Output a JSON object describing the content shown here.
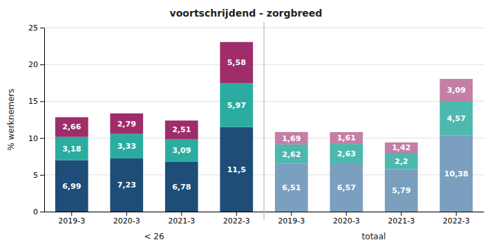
{
  "chart_data": [
    {
      "type": "bar",
      "title": "voortschrijdend - zorgbreed",
      "xlabel": "< 26",
      "ylabel": "% werknemers",
      "categories": [
        "2019-3",
        "2020-3",
        "2021-3",
        "2022-3"
      ],
      "series": [
        {
          "color": "#1e4d78",
          "values": [
            6.99,
            7.23,
            6.78,
            11.5
          ],
          "value_labels": [
            "6,99",
            "7,23",
            "6,78",
            "11,5"
          ]
        },
        {
          "color": "#2aada0",
          "values": [
            3.18,
            3.33,
            3.09,
            5.97
          ],
          "value_labels": [
            "3,18",
            "3,33",
            "3,09",
            "5,97"
          ]
        },
        {
          "color": "#9e2d6a",
          "values": [
            2.66,
            2.79,
            2.51,
            5.58
          ],
          "value_labels": [
            "2,66",
            "2,79",
            "2,51",
            "5,58"
          ]
        }
      ],
      "stacked": true,
      "data_labels": true,
      "grid": true,
      "ylim": [
        0,
        25
      ],
      "yticks": [
        0,
        5,
        10,
        15,
        20,
        25
      ]
    },
    {
      "type": "bar",
      "xlabel": "totaal",
      "categories": [
        "2019-3",
        "2020-3",
        "2021-3",
        "2022-3"
      ],
      "series": [
        {
          "color": "#7b9fbe",
          "values": [
            6.51,
            6.57,
            5.79,
            10.38
          ],
          "value_labels": [
            "6,51",
            "6,57",
            "5,79",
            "10,38"
          ]
        },
        {
          "color": "#4db8ae",
          "values": [
            2.62,
            2.63,
            2.2,
            4.57
          ],
          "value_labels": [
            "2,62",
            "2,63",
            "2,2",
            "4,57"
          ]
        },
        {
          "color": "#c47fa5",
          "values": [
            1.69,
            1.61,
            1.42,
            3.09
          ],
          "value_labels": [
            "1,69",
            "1,61",
            "1,42",
            "3,09"
          ]
        }
      ],
      "stacked": true,
      "data_labels": true,
      "grid": true,
      "tick_labels": "x",
      "ylim": [
        0,
        25
      ],
      "yticks": [
        0,
        5,
        10,
        15,
        20,
        25
      ]
    }
  ]
}
